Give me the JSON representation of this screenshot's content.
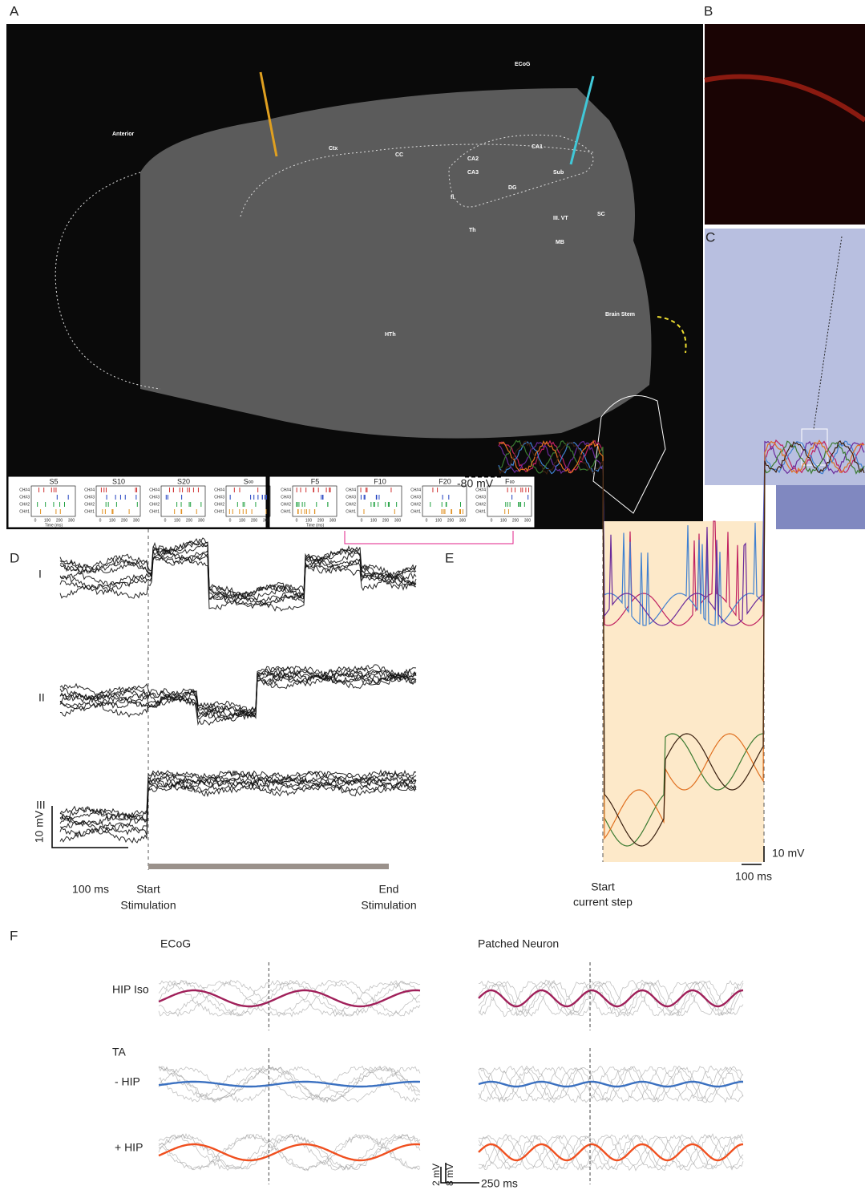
{
  "panel_labels": [
    "A",
    "B",
    "C",
    "D",
    "E",
    "F"
  ],
  "panel_a": {
    "labels": [
      "Anterior",
      "ECoG",
      "Ctx",
      "CC",
      "CA1",
      "CA2",
      "CA3",
      "Sub",
      "DG",
      "fi",
      "III. VT",
      "SC",
      "Th",
      "MB",
      "HTh",
      "Brain Stem"
    ],
    "raster": {
      "slow_titles": [
        "S5",
        "S10",
        "S20",
        "S∞"
      ],
      "fast_titles": [
        "F5",
        "F10",
        "F20",
        "F∞"
      ],
      "channels": [
        "CH#4",
        "CH#3",
        "CH#2",
        "CH#1"
      ],
      "ticks": [
        "0",
        "100",
        "200",
        "300"
      ],
      "time_label": "Time (ms)"
    }
  },
  "panel_d": {
    "rows": [
      "I",
      "II",
      "III"
    ],
    "scale_v": "10 mV",
    "scale_h": "100 ms",
    "start": [
      "Start",
      "Stimulation"
    ],
    "end": [
      "End",
      "Stimulation"
    ]
  },
  "panel_e": {
    "baseline": "-80 mV",
    "scale_v": "10 mV",
    "scale_h": "100 ms",
    "start": [
      "Start",
      "current step"
    ]
  },
  "panel_f": {
    "columns": [
      "ECoG",
      "Patched Neuron"
    ],
    "rows": [
      "HIP Iso",
      "TA",
      "- HIP",
      "+ HIP"
    ],
    "scale_v": [
      "2 mV",
      "8 mV"
    ],
    "scale_h": "250 ms"
  }
}
